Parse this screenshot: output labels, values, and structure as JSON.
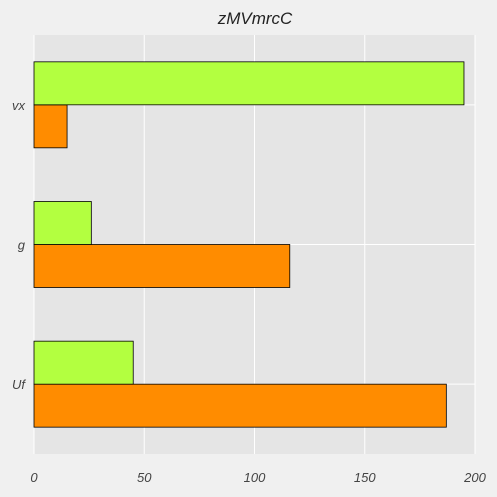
{
  "chart_data": {
    "type": "bar",
    "orientation": "horizontal",
    "title": "zMVmrcC",
    "xlabel": "",
    "ylabel": "",
    "categories": [
      "Uf",
      "g",
      "vx"
    ],
    "series": [
      {
        "values": [
          187,
          116,
          15
        ],
        "color": "#ff8c00"
      },
      {
        "values": [
          45,
          26,
          195
        ],
        "color": "#b3ff40"
      }
    ],
    "xlim": [
      0,
      200
    ],
    "xticks": [
      0,
      50,
      100,
      150,
      200
    ],
    "grid": true,
    "legend": "none"
  },
  "colors": {
    "plot_background": "#e5e5e5",
    "page_background": "#f0f0f0",
    "grid": "#ffffff",
    "bar_edge": "#000000"
  }
}
